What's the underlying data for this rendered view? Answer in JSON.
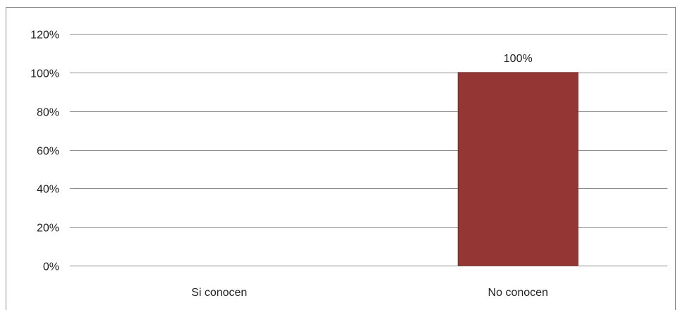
{
  "chart_data": {
    "type": "bar",
    "categories": [
      "Si conocen",
      "No conocen"
    ],
    "values": [
      0,
      100
    ],
    "data_labels": [
      "",
      "100%"
    ],
    "ylim": [
      0,
      120
    ],
    "yticks": [
      0,
      20,
      40,
      60,
      80,
      100,
      120
    ],
    "ytick_labels": [
      "0%",
      "20%",
      "40%",
      "60%",
      "80%",
      "100%",
      "120%"
    ],
    "title": "",
    "xlabel": "",
    "ylabel": "",
    "grid": true,
    "legend": "none",
    "colors": {
      "bar": "#943634",
      "bar_edge": "#7a2b29",
      "grid": "#8c8c8c",
      "axis": "#8c8c8c"
    }
  }
}
